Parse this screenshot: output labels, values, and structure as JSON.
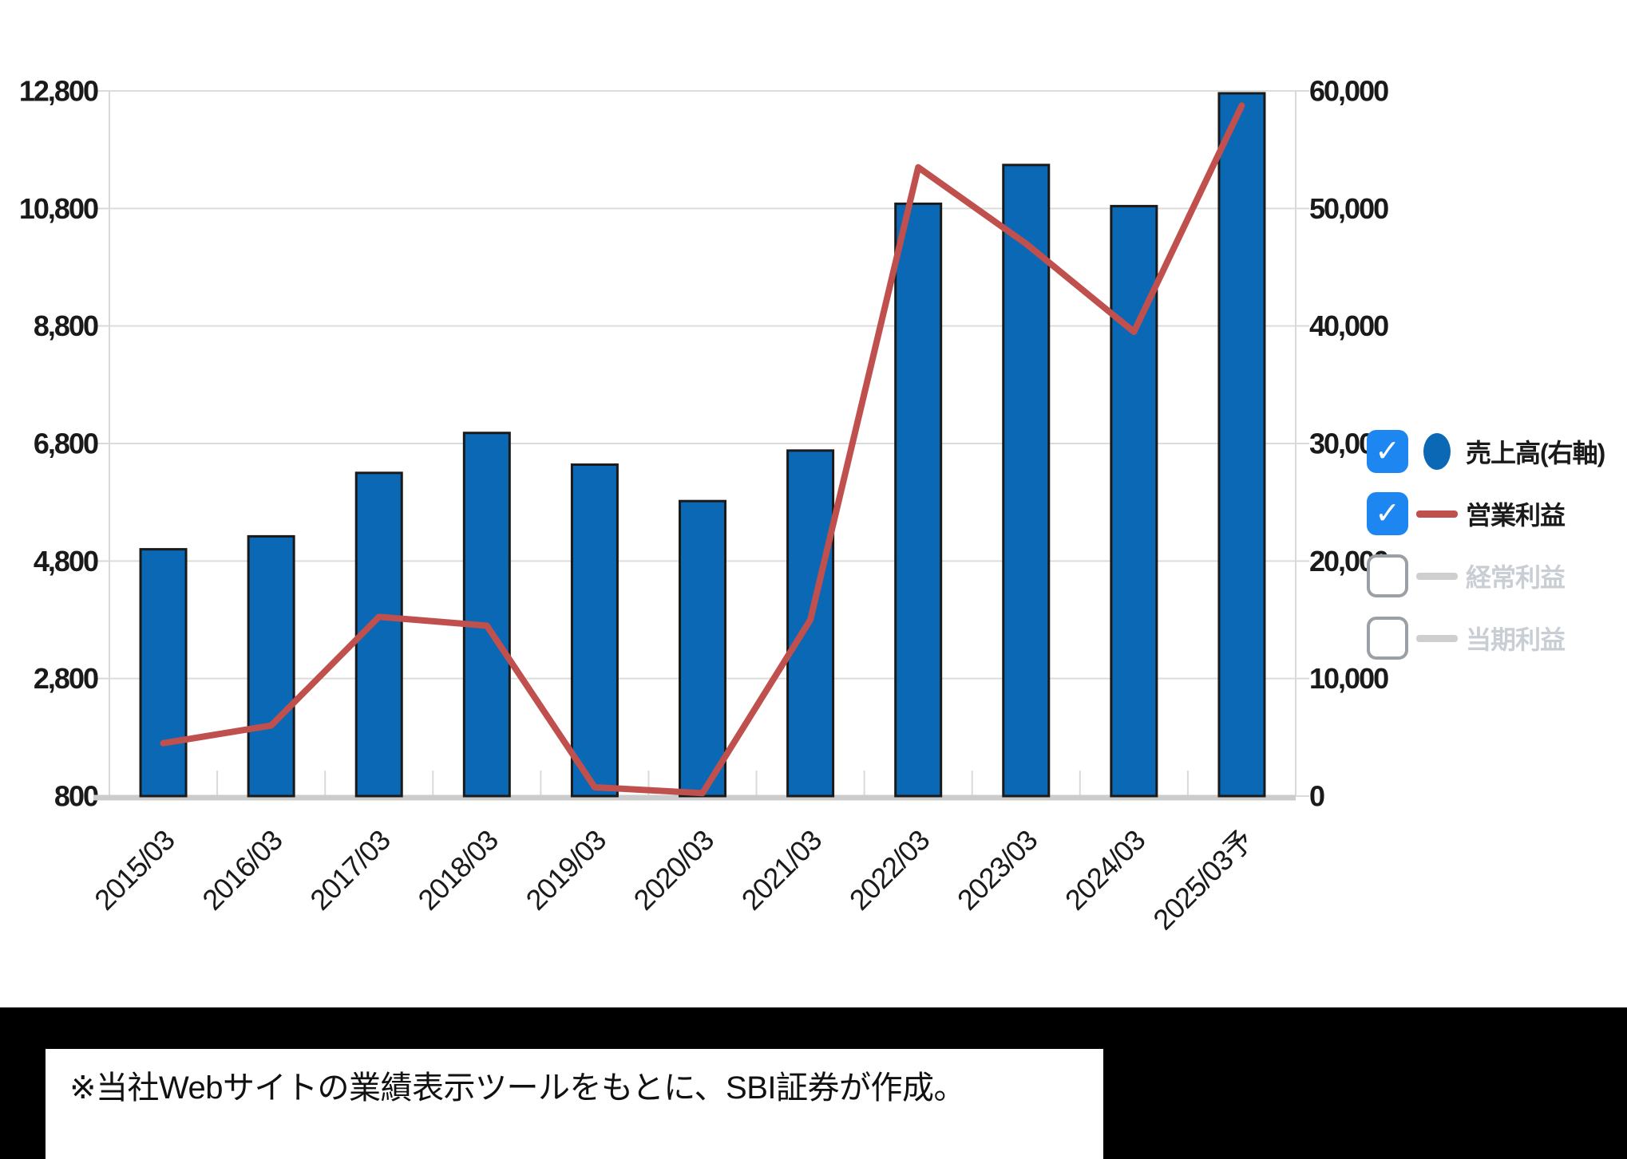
{
  "chart_data": {
    "type": "combo",
    "title": "",
    "categories": [
      "2015/03",
      "2016/03",
      "2017/03",
      "2018/03",
      "2019/03",
      "2020/03",
      "2021/03",
      "2022/03",
      "2023/03",
      "2024/03",
      "2025/03予"
    ],
    "series": [
      {
        "name": "売上高(右軸)",
        "type": "bar",
        "axis": "right",
        "color": "#0a68b4",
        "border_color": "#1a1a1a",
        "values": [
          21000,
          22100,
          27500,
          30900,
          28200,
          25100,
          29400,
          50400,
          53700,
          50200,
          59800
        ]
      },
      {
        "name": "営業利益",
        "type": "line",
        "axis": "left",
        "color": "#c0504d",
        "values": [
          1700,
          2000,
          3850,
          3700,
          950,
          850,
          3800,
          11500,
          10200,
          8700,
          12550
        ]
      }
    ],
    "left_axis": {
      "min": 800,
      "max": 12800,
      "tick_step": 2000,
      "tick_labels": [
        "800",
        "2,800",
        "4,800",
        "6,800",
        "8,800",
        "10,800",
        "12,800"
      ]
    },
    "right_axis": {
      "min": 0,
      "max": 60000,
      "tick_step": 10000,
      "tick_labels": [
        "0",
        "10,000",
        "20,000",
        "30,000",
        "40,000",
        "50,000",
        "60,000"
      ]
    },
    "grid": true,
    "legend_position": "right",
    "legend": {
      "items": [
        {
          "label": "売上高(右軸)",
          "checked": true,
          "marker": "circle",
          "marker_color": "#0a68b4",
          "text_color": "#1a1a1a"
        },
        {
          "label": "営業利益",
          "checked": true,
          "marker": "line",
          "marker_color": "#c0504d",
          "text_color": "#1a1a1a"
        },
        {
          "label": "経常利益",
          "checked": false,
          "marker": "line",
          "marker_color": "#cfcfcf",
          "text_color": "#c9ced4"
        },
        {
          "label": "当期利益",
          "checked": false,
          "marker": "line",
          "marker_color": "#cfcfcf",
          "text_color": "#c9ced4"
        }
      ]
    },
    "colors": {
      "grid": "#dcdcdc",
      "axis_line": "#d9d9d9",
      "baseline": "#cccccc",
      "tick_text": "#1a1a1a",
      "checkbox_blue": "#1d86f0"
    }
  },
  "icons": {
    "check": "✓"
  },
  "footer": {
    "note": "※当社Webサイトの業績表示ツールをもとに、SBI証券が作成。"
  }
}
